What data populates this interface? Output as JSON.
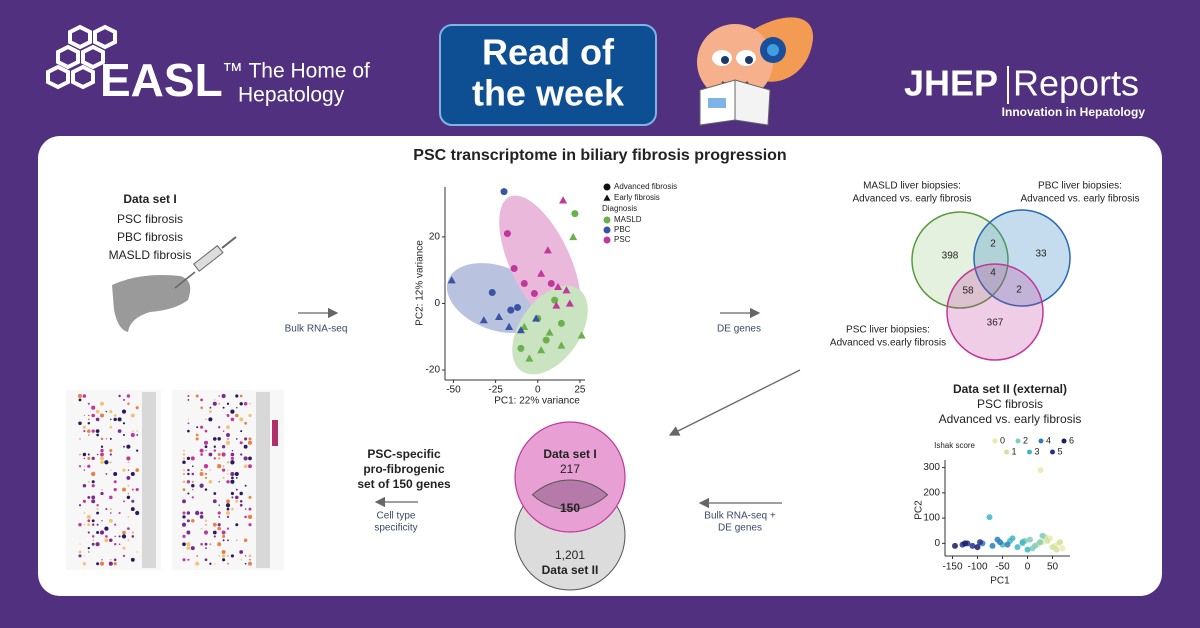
{
  "header": {
    "logo": "EASL",
    "tagline": [
      "™ The Home of",
      "Hepatology"
    ],
    "badge": [
      "Read of",
      "the week"
    ],
    "journal": [
      "JHEP",
      "Reports"
    ],
    "journal_subtitle": "Innovation in Hepatology"
  },
  "title": "PSC transcriptome in biliary fibrosis progression",
  "dataset1": {
    "heading": "Data set I",
    "items": [
      "PSC fibrosis",
      "PBC fibrosis",
      "MASLD fibrosis"
    ]
  },
  "arrows": {
    "rnaseq": "Bulk RNA-seq",
    "de": "DE genes",
    "external": [
      "Bulk RNA-seq +",
      "DE genes"
    ],
    "specificity": [
      "Cell type",
      "specificity"
    ]
  },
  "pca": {
    "xlabel": "PC1: 22% variance",
    "ylabel": "PC2: 12% variance",
    "xlim": [
      -55,
      28
    ],
    "ylim": [
      -23,
      35
    ],
    "xticks": [
      -50,
      -25,
      0,
      25
    ],
    "yticks": [
      -20,
      0,
      20
    ],
    "stage_legend": [
      "Advanced fibrosis",
      "Early fibrosis"
    ],
    "diagnosis_title": "Diagnosis",
    "series": [
      {
        "name": "MASLD",
        "color": "#6ab04c",
        "advanced": {
          "x": [
            22,
            -10,
            0,
            10,
            14,
            5
          ],
          "y": [
            27,
            -13.5,
            -4.5,
            1,
            -6,
            -11
          ]
        },
        "early": {
          "x": [
            21,
            -8,
            2,
            14,
            26,
            7,
            -5
          ],
          "y": [
            20,
            -7,
            -14,
            -12.6,
            -9.6,
            -8.7,
            -16.5
          ]
        }
      },
      {
        "name": "PBC",
        "color": "#3a53a4",
        "advanced": {
          "x": [
            -20,
            -27,
            -12,
            -16
          ],
          "y": [
            33.6,
            3.3,
            -1.2,
            -2
          ]
        },
        "early": {
          "x": [
            -51,
            -32,
            -23,
            -17,
            -10,
            -1
          ],
          "y": [
            7,
            -5,
            -4,
            -7,
            -8,
            -4.5
          ]
        }
      },
      {
        "name": "PSC",
        "color": "#c2379a",
        "advanced": {
          "x": [
            -18,
            -14,
            -8,
            -2,
            8
          ],
          "y": [
            21,
            10.5,
            6,
            3,
            6
          ]
        },
        "early": {
          "x": [
            6,
            12,
            17,
            2,
            19,
            11,
            15
          ],
          "y": [
            16,
            5,
            4,
            9,
            0,
            -0.6,
            31
          ]
        }
      }
    ]
  },
  "venn3": {
    "labels": {
      "masld": [
        "MASLD liver biopsies:",
        "Advanced vs. early fibrosis"
      ],
      "pbc": [
        "PBC liver biopsies:",
        "Advanced vs. early fibrosis"
      ],
      "psc": [
        "PSC liver biopsies:",
        "Advanced vs.early fibrosis"
      ]
    },
    "counts": {
      "masld": "398",
      "masld_pbc": "2",
      "pbc": "33",
      "all": "4",
      "masld_psc": "58",
      "pbc_psc": "2",
      "psc": "367"
    }
  },
  "dataset2": {
    "heading": "Data set II (external)",
    "lines": [
      "PSC fibrosis",
      "Advanced vs. early fibrosis"
    ]
  },
  "ishak": {
    "legend_title": "Ishak score",
    "xlabel": "PC1",
    "ylabel": "PC2",
    "xlim": [
      -165,
      85
    ],
    "ylim": [
      -50,
      330
    ],
    "xticks": [
      -150,
      -100,
      -50,
      0,
      50
    ],
    "yticks": [
      0,
      100,
      200,
      300
    ],
    "series": [
      {
        "name": "0",
        "color": "#efe9a8",
        "x": [
          30,
          55,
          62,
          70,
          45,
          26
        ],
        "y": [
          5,
          -10,
          0,
          -20,
          20,
          290
        ]
      },
      {
        "name": "1",
        "color": "#cfe3a0",
        "x": [
          20,
          40,
          50,
          65,
          35,
          58
        ],
        "y": [
          -5,
          10,
          -15,
          5,
          25,
          -25
        ]
      },
      {
        "name": "2",
        "color": "#7fcdbb",
        "x": [
          -10,
          5,
          15,
          25,
          10,
          30,
          -5
        ],
        "y": [
          0,
          15,
          -10,
          5,
          -20,
          30,
          10
        ]
      },
      {
        "name": "3",
        "color": "#41b6c4",
        "x": [
          -50,
          -35,
          -20,
          -10,
          -30,
          -76,
          0
        ],
        "y": [
          -5,
          10,
          -15,
          5,
          20,
          104,
          -25
        ]
      },
      {
        "name": "4",
        "color": "#2c7fb8",
        "x": [
          -90,
          -70,
          -55,
          -40,
          -60
        ],
        "y": [
          0,
          -10,
          5,
          -5,
          15
        ]
      },
      {
        "name": "5",
        "color": "#253494",
        "x": [
          -130,
          -110,
          -95,
          -120
        ],
        "y": [
          -5,
          -10,
          5,
          0
        ]
      },
      {
        "name": "6",
        "color": "#1a1f5e",
        "x": [
          -145,
          -125,
          -100
        ],
        "y": [
          -10,
          0,
          -15
        ]
      }
    ]
  },
  "result": {
    "lines": [
      "PSC-specific",
      "pro-fibrogenic",
      "set of 150 genes"
    ]
  },
  "venn2": {
    "top_label": "Data set I",
    "top_count": "217",
    "overlap": "150",
    "bottom_count": "1,201",
    "bottom_label": "Data set II"
  }
}
